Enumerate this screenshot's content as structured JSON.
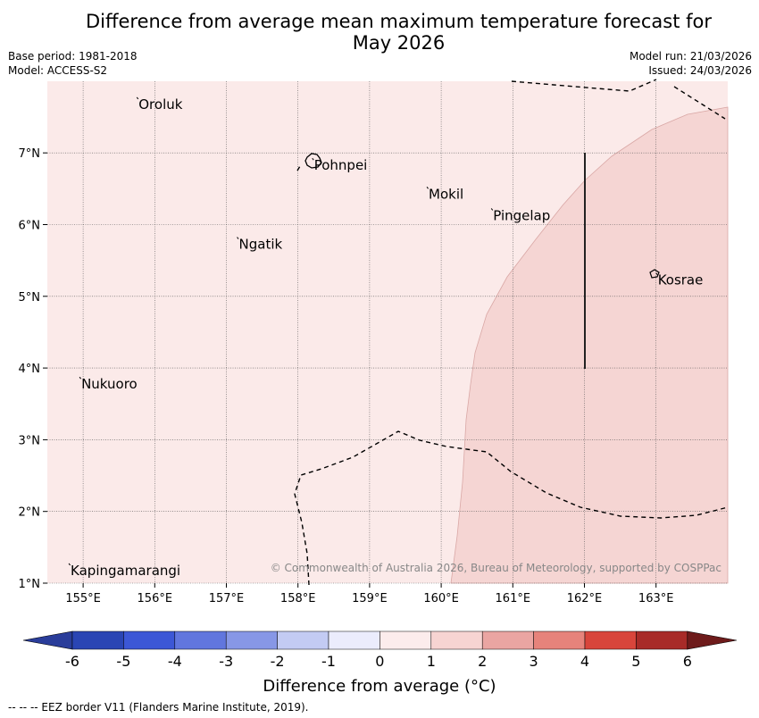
{
  "title": {
    "line1": "Difference from average mean maximum temperature forecast for",
    "line2": "May 2026"
  },
  "meta": {
    "base_period": "Base period: 1981-2018",
    "model": "Model: ACCESS-S2",
    "model_run": "Model run: 21/03/2026",
    "issued": "Issued: 24/03/2026"
  },
  "map": {
    "lon_labels": [
      "155°E",
      "156°E",
      "157°E",
      "158°E",
      "159°E",
      "160°E",
      "161°E",
      "162°E",
      "163°E"
    ],
    "lat_labels": [
      "7°N",
      "6°N",
      "5°N",
      "4°N",
      "3°N",
      "2°N",
      "1°N"
    ],
    "places": [
      {
        "name": "Oroluk",
        "lon": 155.75,
        "lat": 7.75
      },
      {
        "name": "Pohnpei",
        "lon": 158.2,
        "lat": 6.9
      },
      {
        "name": "Mokil",
        "lon": 159.8,
        "lat": 6.5
      },
      {
        "name": "Pingelap",
        "lon": 160.7,
        "lat": 6.2
      },
      {
        "name": "Ngatik",
        "lon": 157.15,
        "lat": 5.8
      },
      {
        "name": "Kosrae",
        "lon": 163.0,
        "lat": 5.3
      },
      {
        "name": "Nukuoro",
        "lon": 154.95,
        "lat": 3.85
      },
      {
        "name": "Kapingamarangi",
        "lon": 154.8,
        "lat": 1.25
      }
    ],
    "copyright": "© Commonwealth of Australia 2026, Bureau of Meteorology, supported by COSPPac",
    "fill_colors": {
      "base": "#fbeae9",
      "warm": "#f5d5d3",
      "edge": "#d9a7a5"
    }
  },
  "colorbar": {
    "ticks": [
      "-6",
      "-5",
      "-4",
      "-3",
      "-2",
      "-1",
      "0",
      "1",
      "2",
      "3",
      "4",
      "5",
      "6"
    ],
    "colors": [
      "#2a3d9a",
      "#2a45b4",
      "#3c57d6",
      "#6176de",
      "#8797e6",
      "#c3cbf3",
      "#ebecfc",
      "#fcecec",
      "#f7d4d2",
      "#eaa5a2",
      "#e6837b",
      "#d8453b",
      "#a82b28",
      "#6e1b1b"
    ],
    "label": "Difference from average (°C)"
  },
  "footnote": "--  --  -- EEZ border V11 (Flanders Marine Institute, 2019)."
}
